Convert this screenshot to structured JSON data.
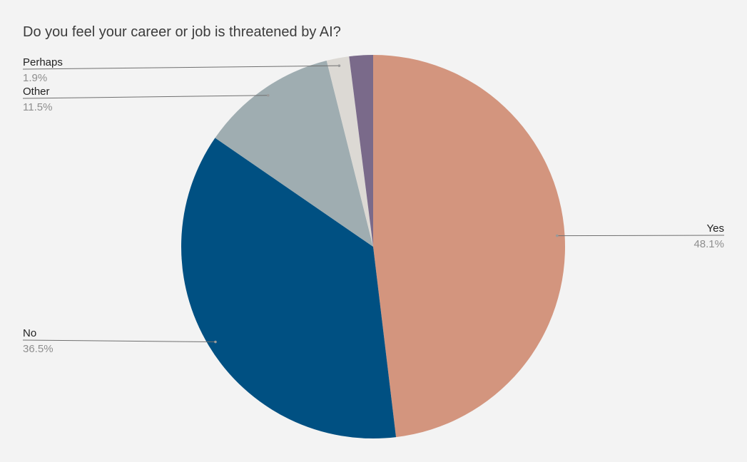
{
  "chart_data": {
    "type": "pie",
    "title": "Do you feel your career or job is threatened by AI?",
    "slices": [
      {
        "label": "Yes",
        "value": 48.1,
        "value_label": "48.1%",
        "color": "#d3957e"
      },
      {
        "label": "No",
        "value": 36.5,
        "value_label": "36.5%",
        "color": "#005082"
      },
      {
        "label": "Other",
        "value": 11.5,
        "value_label": "11.5%",
        "color": "#9fadb1"
      },
      {
        "label": "Perhaps",
        "value": 1.9,
        "value_label": "1.9%",
        "color": "#dcd9d4"
      },
      {
        "label": "",
        "value": 2.0,
        "value_label": "",
        "color": "#7a6a8a"
      }
    ],
    "legend": "none",
    "background": "#f3f3f3"
  }
}
